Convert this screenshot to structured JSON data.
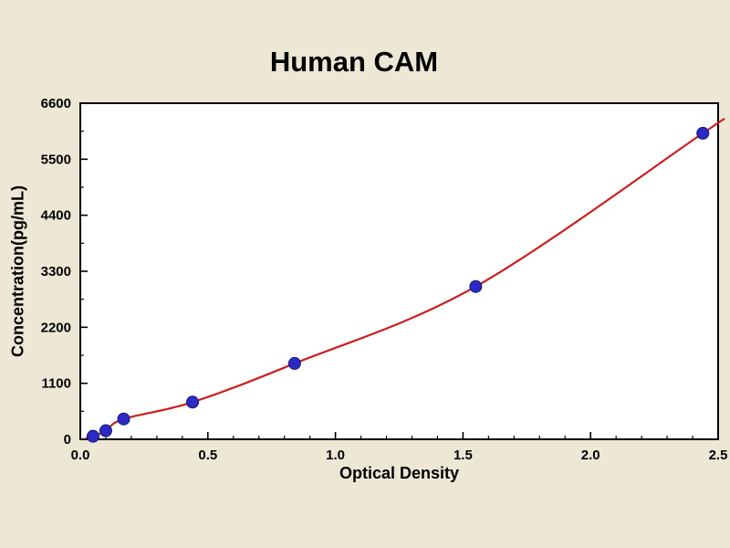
{
  "page": {
    "background_color": "#ece8d5"
  },
  "chart_data": {
    "type": "scatter",
    "title": "Human CAM",
    "xlabel": "Optical Density",
    "ylabel": "Concentration(pg/mL)",
    "xlim": [
      0,
      2.5
    ],
    "ylim": [
      0,
      6600
    ],
    "x_ticks": [
      "0.0",
      "0.5",
      "1.0",
      "1.5",
      "2.0",
      "2.5"
    ],
    "y_ticks": [
      "0",
      "1100",
      "2200",
      "3300",
      "4400",
      "5500",
      "6600"
    ],
    "x_minor_step": 0.1,
    "y_minor_step": 550,
    "grid": false,
    "legend_position": "none",
    "plot_background": "#ffffff",
    "curve_color": "#cc1e1e",
    "point_color": "#2b2bc4",
    "point_edge_color": "#15157d",
    "series": [
      {
        "name": "standard-points",
        "type": "scatter",
        "x": [
          0.05,
          0.1,
          0.17,
          0.44,
          0.84,
          1.55,
          2.44
        ],
        "y": [
          60,
          170,
          400,
          730,
          1490,
          3000,
          6010
        ]
      },
      {
        "name": "fitted-curve",
        "type": "line",
        "start": [
          0.02,
          20
        ],
        "end": [
          2.49,
          6180
        ]
      }
    ]
  }
}
